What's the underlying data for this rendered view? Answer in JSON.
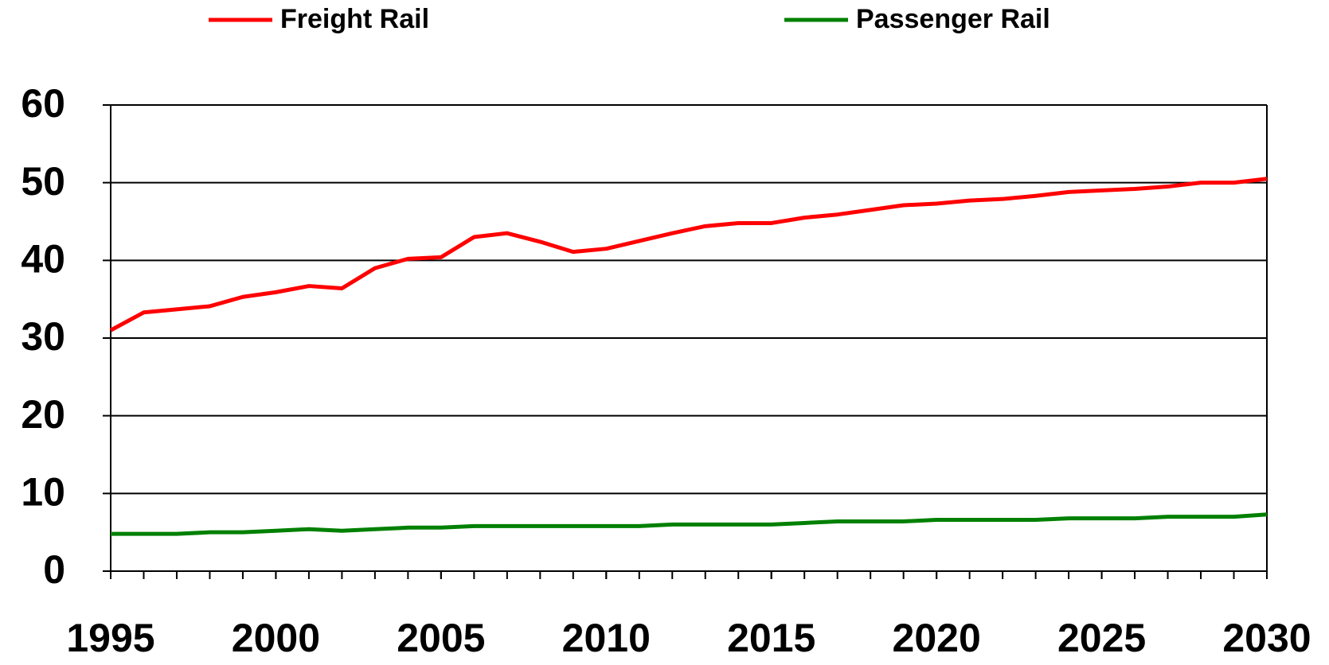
{
  "chart_data": {
    "type": "line",
    "x": [
      1995,
      1996,
      1997,
      1998,
      1999,
      2000,
      2001,
      2002,
      2003,
      2004,
      2005,
      2006,
      2007,
      2008,
      2009,
      2010,
      2011,
      2012,
      2013,
      2014,
      2015,
      2016,
      2017,
      2018,
      2019,
      2020,
      2021,
      2022,
      2023,
      2024,
      2025,
      2026,
      2027,
      2028,
      2029,
      2030
    ],
    "series": [
      {
        "name": "Freight Rail",
        "color": "#ff0000",
        "values": [
          31.0,
          33.3,
          33.7,
          34.1,
          35.3,
          35.9,
          36.7,
          36.4,
          39.0,
          40.2,
          40.4,
          43.0,
          43.5,
          42.4,
          41.1,
          41.5,
          42.5,
          43.5,
          44.4,
          44.8,
          44.8,
          45.5,
          45.9,
          46.5,
          47.1,
          47.3,
          47.7,
          47.9,
          48.3,
          48.8,
          49.0,
          49.2,
          49.5,
          50.0,
          50.0,
          50.5
        ]
      },
      {
        "name": "Passenger Rail",
        "color": "#008000",
        "values": [
          4.8,
          4.8,
          4.8,
          5.0,
          5.0,
          5.2,
          5.4,
          5.2,
          5.4,
          5.6,
          5.6,
          5.8,
          5.8,
          5.8,
          5.8,
          5.8,
          5.8,
          6.0,
          6.0,
          6.0,
          6.0,
          6.2,
          6.4,
          6.4,
          6.4,
          6.6,
          6.6,
          6.6,
          6.6,
          6.8,
          6.8,
          6.8,
          7.0,
          7.0,
          7.0,
          7.3
        ]
      }
    ],
    "xlim": [
      1995,
      2030
    ],
    "xticks": [
      1995,
      2000,
      2005,
      2010,
      2015,
      2020,
      2025,
      2030
    ],
    "ylim": [
      0,
      60
    ],
    "yticks": [
      0,
      10,
      20,
      30,
      40,
      50,
      60
    ],
    "grid": true
  }
}
